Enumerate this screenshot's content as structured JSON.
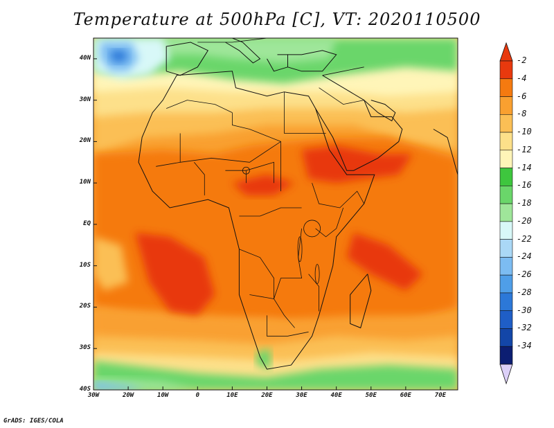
{
  "title": "Temperature at 500hPa [C], VT: 2020110500",
  "footer": "GrADS: IGES/COLA",
  "lat_labels": [
    "40N",
    "30N",
    "20N",
    "10N",
    "EQ",
    "10S",
    "20S",
    "30S",
    "40S"
  ],
  "lon_labels": [
    "30W",
    "20W",
    "10W",
    "0",
    "10E",
    "20E",
    "30E",
    "40E",
    "50E",
    "60E",
    "70E"
  ],
  "colorbar": {
    "levels": [
      "-2",
      "-4",
      "-6",
      "-8",
      "-10",
      "-12",
      "-14",
      "-16",
      "-18",
      "-20",
      "-22",
      "-24",
      "-26",
      "-28",
      "-30",
      "-32",
      "-34"
    ],
    "colors": [
      "#e8390e",
      "#f57a10",
      "#f9a030",
      "#fbbf55",
      "#fde08a",
      "#fff5b8",
      "#3ec63e",
      "#6ad66a",
      "#9fe69a",
      "#d8f8f8",
      "#aad8f6",
      "#7cbcf2",
      "#4f9ee8",
      "#2c78d8",
      "#1f5ec6",
      "#1346a8",
      "#0c1e72"
    ],
    "top_arrow_color": "#e8390e",
    "bottom_arrow_color": "#dcd0f8"
  },
  "fill_colors": {
    "ocean_warm": "#f9a030",
    "hot": "#f57a10",
    "very_hot": "#e8390e",
    "mild": "#fbbf55",
    "cool": "#fde08a",
    "cold": "#fff5b8",
    "green": "#3ec63e",
    "light_green": "#6ad66a",
    "pale_green": "#9fe69a",
    "cyan": "#d8f8f8",
    "blue": "#7cbcf2",
    "deep_blue": "#2c78d8"
  }
}
